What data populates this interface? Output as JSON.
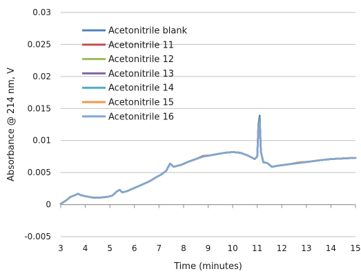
{
  "chart_data": {
    "type": "line",
    "xlabel": "Time (minutes)",
    "ylabel": "Absorbance @ 214 nm, V",
    "xlim": [
      3,
      15
    ],
    "ylim": [
      -0.005,
      0.03
    ],
    "x_ticks": [
      3,
      4,
      5,
      6,
      7,
      8,
      9,
      10,
      11,
      12,
      13,
      14,
      15
    ],
    "y_ticks": [
      {
        "value": -0.005,
        "label": "-0.005"
      },
      {
        "value": 0,
        "label": "0"
      },
      {
        "value": 0.005,
        "label": "0.005"
      },
      {
        "value": 0.01,
        "label": "0.01"
      },
      {
        "value": 0.015,
        "label": "0.015"
      },
      {
        "value": 0.02,
        "label": "0.02"
      },
      {
        "value": 0.025,
        "label": "0.025"
      },
      {
        "value": 0.03,
        "label": "0.03"
      }
    ],
    "grid": "horizontal",
    "legend_position": "top-left",
    "x": [
      3.0,
      3.2,
      3.4,
      3.6,
      3.7,
      3.8,
      4.0,
      4.3,
      4.6,
      4.9,
      5.1,
      5.3,
      5.4,
      5.5,
      5.7,
      6.0,
      6.3,
      6.6,
      6.9,
      7.1,
      7.3,
      7.45,
      7.6,
      7.9,
      8.2,
      8.5,
      8.8,
      9.1,
      9.4,
      9.7,
      10.0,
      10.3,
      10.6,
      10.9,
      11.0,
      11.05,
      11.1,
      11.15,
      11.25,
      11.4,
      11.6,
      11.9,
      12.3,
      12.7,
      13.1,
      13.5,
      14.0,
      14.5,
      15.0
    ],
    "series": [
      {
        "name": "Acetonitrile blank",
        "color": "#4f81bd",
        "values": [
          0.0001,
          0.0006,
          0.0012,
          0.0015,
          0.0017,
          0.0015,
          0.0013,
          0.0011,
          0.0011,
          0.0012,
          0.0014,
          0.0021,
          0.0023,
          0.0019,
          0.0021,
          0.0026,
          0.0031,
          0.0036,
          0.0043,
          0.0047,
          0.0053,
          0.0064,
          0.0059,
          0.0062,
          0.0067,
          0.0071,
          0.0075,
          0.0077,
          0.0079,
          0.0081,
          0.0082,
          0.0081,
          0.0077,
          0.0071,
          0.0075,
          0.0125,
          0.0139,
          0.0082,
          0.0066,
          0.0065,
          0.0059,
          0.0061,
          0.0063,
          0.0065,
          0.0067,
          0.0069,
          0.0071,
          0.0072,
          0.0073
        ]
      },
      {
        "name": "Acetonitrile 11",
        "color": "#c0504d",
        "values": [
          0.0001,
          0.0006,
          0.0012,
          0.0015,
          0.0017,
          0.0015,
          0.0013,
          0.0011,
          0.0011,
          0.0012,
          0.0014,
          0.0021,
          0.0023,
          0.0019,
          0.0021,
          0.0026,
          0.0031,
          0.0036,
          0.0043,
          0.0047,
          0.0053,
          0.0064,
          0.0059,
          0.0062,
          0.0067,
          0.0071,
          0.0076,
          0.0077,
          0.0079,
          0.0081,
          0.0082,
          0.0081,
          0.0077,
          0.0071,
          0.0075,
          0.0122,
          0.0136,
          0.0082,
          0.0066,
          0.0065,
          0.0059,
          0.0061,
          0.0063,
          0.0066,
          0.0067,
          0.0069,
          0.0071,
          0.0072,
          0.0073
        ]
      },
      {
        "name": "Acetonitrile 12",
        "color": "#9bbb59",
        "values": [
          0.0001,
          0.0006,
          0.0012,
          0.0015,
          0.0017,
          0.0015,
          0.0013,
          0.0011,
          0.0011,
          0.0012,
          0.0014,
          0.0021,
          0.0023,
          0.0019,
          0.0021,
          0.0026,
          0.0031,
          0.0036,
          0.0043,
          0.0047,
          0.0053,
          0.0064,
          0.0059,
          0.0062,
          0.0067,
          0.0071,
          0.0075,
          0.0077,
          0.0079,
          0.0081,
          0.0082,
          0.0081,
          0.0077,
          0.0071,
          0.0075,
          0.0121,
          0.0135,
          0.0082,
          0.0066,
          0.0065,
          0.0059,
          0.0061,
          0.0063,
          0.0065,
          0.0067,
          0.0069,
          0.0071,
          0.0072,
          0.0073
        ]
      },
      {
        "name": "Acetonitrile 13",
        "color": "#8064a2",
        "values": [
          0.0001,
          0.0006,
          0.0012,
          0.0015,
          0.0017,
          0.0015,
          0.0013,
          0.0011,
          0.0011,
          0.0012,
          0.0014,
          0.0021,
          0.0023,
          0.0019,
          0.0021,
          0.0026,
          0.0031,
          0.0036,
          0.0043,
          0.0047,
          0.0053,
          0.0064,
          0.0059,
          0.0062,
          0.0067,
          0.0071,
          0.0075,
          0.0077,
          0.0079,
          0.0081,
          0.0082,
          0.0081,
          0.0077,
          0.0071,
          0.0075,
          0.012,
          0.0134,
          0.0082,
          0.0066,
          0.0065,
          0.0059,
          0.0061,
          0.0063,
          0.0065,
          0.0067,
          0.0069,
          0.0071,
          0.0072,
          0.0073
        ]
      },
      {
        "name": "Acetonitrile 14",
        "color": "#4bacc6",
        "values": [
          0.0001,
          0.0006,
          0.0012,
          0.0015,
          0.0017,
          0.0015,
          0.0013,
          0.0011,
          0.0011,
          0.0012,
          0.0014,
          0.0021,
          0.0023,
          0.0019,
          0.0021,
          0.0026,
          0.0031,
          0.0036,
          0.0043,
          0.0047,
          0.0053,
          0.0064,
          0.0059,
          0.0062,
          0.0067,
          0.0071,
          0.0075,
          0.0077,
          0.0079,
          0.0081,
          0.0082,
          0.0081,
          0.0077,
          0.0071,
          0.0075,
          0.0119,
          0.0133,
          0.0082,
          0.0066,
          0.0065,
          0.0059,
          0.0061,
          0.0063,
          0.0065,
          0.0067,
          0.0069,
          0.0071,
          0.0072,
          0.0073
        ]
      },
      {
        "name": "Acetonitrile 15",
        "color": "#f79646",
        "values": [
          0.0001,
          0.0006,
          0.0012,
          0.0015,
          0.0017,
          0.0015,
          0.0013,
          0.0011,
          0.0011,
          0.0012,
          0.0014,
          0.0021,
          0.0023,
          0.0019,
          0.0021,
          0.0026,
          0.0031,
          0.0036,
          0.0043,
          0.0047,
          0.0053,
          0.0064,
          0.0059,
          0.0062,
          0.0067,
          0.0071,
          0.0075,
          0.0077,
          0.0079,
          0.0081,
          0.0082,
          0.0081,
          0.0077,
          0.0071,
          0.0075,
          0.0118,
          0.0128,
          0.0082,
          0.0066,
          0.0065,
          0.0059,
          0.0061,
          0.0063,
          0.0066,
          0.0067,
          0.0069,
          0.0071,
          0.0072,
          0.0073
        ]
      },
      {
        "name": "Acetonitrile 16",
        "color": "#7fa7d3",
        "values": [
          0.0001,
          0.0006,
          0.0012,
          0.0015,
          0.0017,
          0.0015,
          0.0013,
          0.0011,
          0.0011,
          0.0012,
          0.0014,
          0.0021,
          0.0023,
          0.0019,
          0.0021,
          0.0026,
          0.0031,
          0.0036,
          0.0043,
          0.0047,
          0.0053,
          0.0064,
          0.0059,
          0.0062,
          0.0067,
          0.0071,
          0.0075,
          0.0077,
          0.0079,
          0.0081,
          0.0082,
          0.0081,
          0.0077,
          0.0071,
          0.0075,
          0.0117,
          0.0127,
          0.0082,
          0.0066,
          0.0065,
          0.0059,
          0.0061,
          0.0063,
          0.0065,
          0.0067,
          0.0069,
          0.0071,
          0.0072,
          0.0073
        ]
      }
    ]
  }
}
